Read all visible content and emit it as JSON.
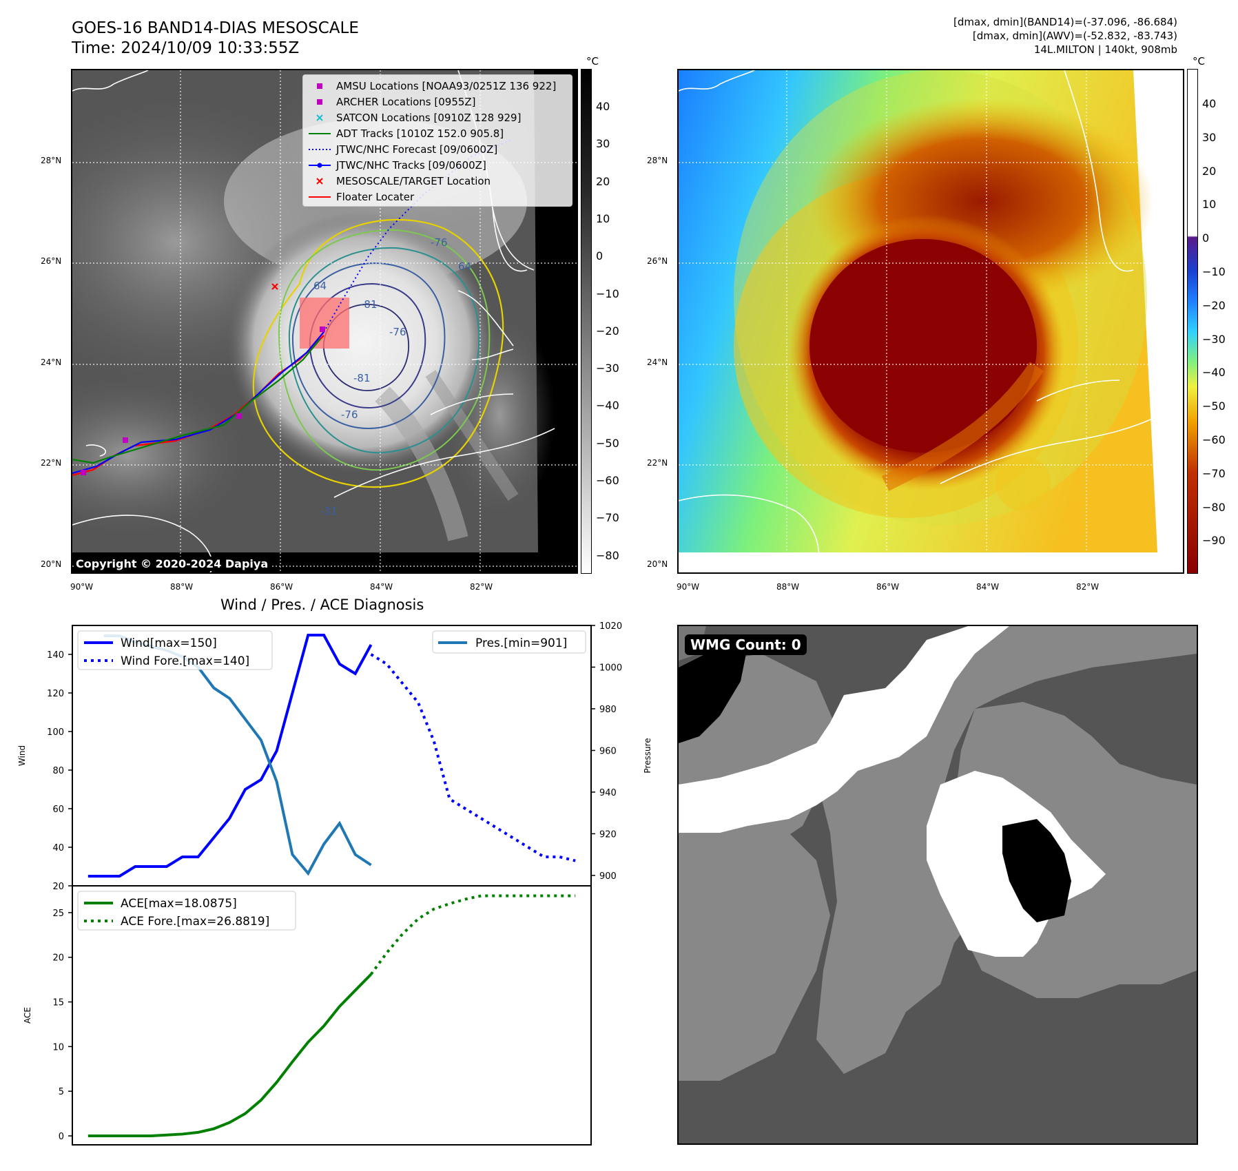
{
  "header": {
    "title_line1": "GOES-16 BAND14-DIAS MESOSCALE",
    "title_line2": "Time: 2024/10/09 10:33:55Z",
    "info_line1": "[dmax, dmin](BAND14)=(-37.096, -86.684)",
    "info_line2": "[dmax, dmin](AWV)=(-52.832, -83.743)",
    "info_line3": "14L.MILTON | 140kt, 908mb"
  },
  "map_axes": {
    "lat_labels": [
      "28°N",
      "26°N",
      "24°N",
      "22°N",
      "20°N"
    ],
    "lon_labels": [
      "90°W",
      "88°W",
      "86°W",
      "84°W",
      "82°W"
    ]
  },
  "ir_panel": {
    "copyright": "Copyright © 2020-2024 Dapiya",
    "contour_labels": [
      "64",
      "64",
      "-76",
      "-76",
      "-81",
      "-81",
      "-76",
      "-31"
    ],
    "legend": [
      {
        "label": "AMSU Locations [NOAA93/0251Z 136 922]",
        "marker": "square",
        "color": "#c000c0"
      },
      {
        "label": "ARCHER Locations [0955Z]",
        "marker": "square",
        "color": "#c000c0"
      },
      {
        "label": "SATCON Locations [0910Z 128 929]",
        "marker": "x",
        "color": "#17becf"
      },
      {
        "label": "ADT Tracks [1010Z 152.0 905.8]",
        "marker": "line",
        "color": "#008000"
      },
      {
        "label": "JTWC/NHC Forecast [09/0600Z]",
        "marker": "dotted",
        "color": "#0000ff"
      },
      {
        "label": "JTWC/NHC Tracks [09/0600Z]",
        "marker": "line-dot",
        "color": "#0000ff"
      },
      {
        "label": "MESOSCALE/TARGET Location",
        "marker": "x",
        "color": "#ff0000"
      },
      {
        "label": "Floater Locater",
        "marker": "line",
        "color": "#ff0000"
      }
    ]
  },
  "colorbars": {
    "unit": "°C",
    "ir_ticks": [
      "40",
      "30",
      "20",
      "10",
      "0",
      "−10",
      "−20",
      "−30",
      "−40",
      "−50",
      "−60",
      "−70",
      "−80"
    ],
    "wv_ticks": [
      "40",
      "30",
      "20",
      "10",
      "0",
      "−10",
      "−20",
      "−30",
      "−40",
      "−50",
      "−60",
      "−70",
      "−80",
      "−90"
    ]
  },
  "wmg_panel": {
    "badge": "WMG Count: 0"
  },
  "chart_data": [
    {
      "type": "line",
      "title": "Wind / Pres. / ACE Diagnosis",
      "ylabel": "Wind",
      "ylim": [
        20,
        155
      ],
      "y_ticks": [
        20,
        40,
        60,
        80,
        100,
        120,
        140
      ],
      "x_index_range": [
        0,
        30
      ],
      "series": [
        {
          "name": "Wind[max=150]",
          "style": "solid",
          "color": "#0000ff",
          "x": [
            0,
            1,
            2,
            3,
            4,
            5,
            6,
            7,
            8,
            9,
            10,
            11,
            12,
            13,
            14,
            15,
            16,
            17,
            18
          ],
          "values": [
            25,
            25,
            25,
            30,
            30,
            30,
            35,
            35,
            45,
            55,
            70,
            75,
            90,
            120,
            150,
            150,
            135,
            130,
            145
          ]
        },
        {
          "name": "Wind Fore.[max=140]",
          "style": "dotted",
          "color": "#0000ff",
          "x": [
            18,
            19,
            20,
            21,
            22,
            23,
            24,
            25,
            26,
            27,
            28,
            29,
            30,
            31
          ],
          "values": [
            140,
            135,
            125,
            115,
            95,
            65,
            60,
            55,
            50,
            45,
            40,
            35,
            35,
            33
          ]
        }
      ],
      "secondary_axis": {
        "ylabel": "Pressure",
        "ylim": [
          895,
          1020
        ],
        "y_ticks": [
          900,
          920,
          940,
          960,
          980,
          1000,
          1020
        ],
        "series": [
          {
            "name": "Pres.[min=901]",
            "style": "solid",
            "color": "#1f77b4",
            "x": [
              1,
              2,
              3,
              4,
              5,
              6,
              7,
              8,
              9,
              10,
              11,
              12,
              13,
              14,
              15,
              16,
              17,
              18
            ],
            "values": [
              1015,
              1015,
              1012,
              1010,
              1008,
              1005,
              1000,
              990,
              985,
              975,
              965,
              945,
              910,
              901,
              915,
              925,
              910,
              905
            ]
          }
        ]
      }
    },
    {
      "type": "line",
      "ylabel": "ACE",
      "ylim": [
        -1,
        28
      ],
      "y_ticks": [
        0,
        5,
        10,
        15,
        20,
        25
      ],
      "series": [
        {
          "name": "ACE[max=18.0875]",
          "style": "solid",
          "color": "#008000",
          "x": [
            0,
            1,
            2,
            3,
            4,
            5,
            6,
            7,
            8,
            9,
            10,
            11,
            12,
            13,
            14,
            15,
            16,
            17,
            18
          ],
          "values": [
            0,
            0,
            0,
            0,
            0,
            0.1,
            0.2,
            0.4,
            0.8,
            1.5,
            2.5,
            4,
            6,
            8.3,
            10.5,
            12.3,
            14.5,
            16.3,
            18.09
          ]
        },
        {
          "name": "ACE Fore.[max=26.8819]",
          "style": "dotted",
          "color": "#008000",
          "x": [
            18,
            19,
            20,
            21,
            22,
            23,
            24,
            25,
            26,
            27,
            28,
            29,
            30,
            31
          ],
          "values": [
            18.09,
            20.5,
            22.6,
            24.3,
            25.4,
            26.0,
            26.5,
            26.88,
            26.88,
            26.88,
            26.88,
            26.88,
            26.88,
            26.88
          ]
        }
      ]
    }
  ]
}
